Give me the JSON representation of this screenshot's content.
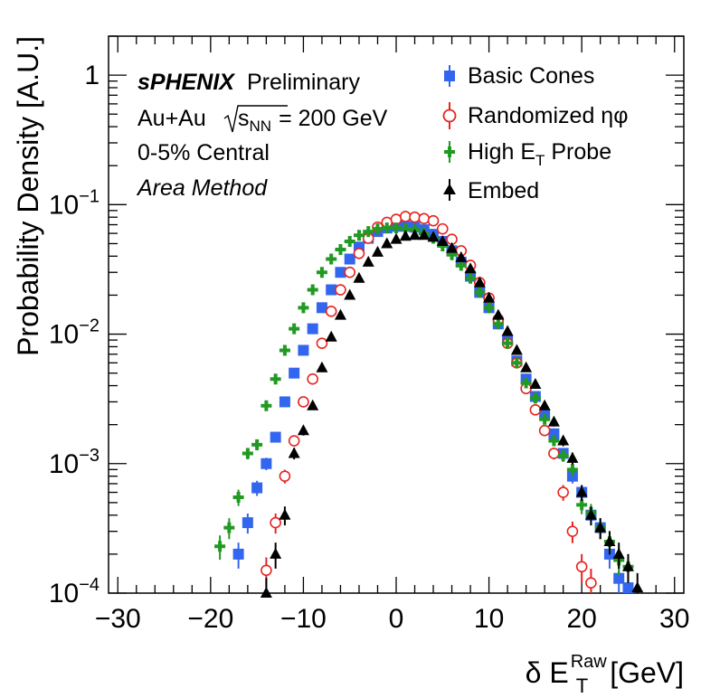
{
  "chart_data": {
    "type": "scatter",
    "x_axis": {
      "range": [
        -31,
        31
      ],
      "scale": "linear",
      "ticks": [
        -30,
        -20,
        -10,
        0,
        10,
        20,
        30
      ],
      "tick_labels": [
        "−30",
        "−20",
        "−10",
        "0",
        "10",
        "20",
        "30"
      ],
      "label_prefix": "δ E",
      "label_sub": "T",
      "label_sup": "Raw",
      "label_suffix": "[GeV]"
    },
    "y_axis": {
      "range": [
        0.0001,
        2
      ],
      "scale": "log",
      "label": "Probability Density [A.U.]",
      "tick_values": [
        0.0001,
        0.001,
        0.01,
        0.1,
        1
      ],
      "tick_labels": [
        {
          "base": "10",
          "exp": "−4"
        },
        {
          "base": "10",
          "exp": "−3"
        },
        {
          "base": "10",
          "exp": "−2"
        },
        {
          "base": "10",
          "exp": "−1"
        },
        {
          "base": "1",
          "exp": ""
        }
      ]
    },
    "annotations": {
      "experiment": "sPHENIX",
      "status": "Preliminary",
      "system": "Au+Au",
      "energy_s": "s",
      "energy_sub": "NN",
      "energy_value": "= 200 GeV",
      "centrality": "0-5% Central",
      "method": "Area Method"
    },
    "series": [
      {
        "name": "Basic Cones",
        "marker": "square",
        "color": "#3366ee",
        "x": [
          -17,
          -16,
          -15,
          -14,
          -13,
          -12,
          -11,
          -10,
          -9,
          -8,
          -7,
          -6,
          -5,
          -4,
          -3,
          -2,
          -1,
          0,
          1,
          2,
          3,
          4,
          5,
          6,
          7,
          8,
          9,
          10,
          11,
          12,
          13,
          14,
          15,
          16,
          17,
          18,
          19,
          20,
          21,
          22,
          23,
          24,
          25
        ],
        "y": [
          0.0002,
          0.00035,
          0.00065,
          0.001,
          0.0016,
          0.003,
          0.005,
          0.0075,
          0.011,
          0.016,
          0.022,
          0.03,
          0.038,
          0.047,
          0.055,
          0.062,
          0.066,
          0.068,
          0.068,
          0.067,
          0.064,
          0.059,
          0.052,
          0.044,
          0.036,
          0.028,
          0.021,
          0.016,
          0.012,
          0.009,
          0.0062,
          0.0045,
          0.0033,
          0.0024,
          0.0017,
          0.0012,
          0.0008,
          0.0006,
          0.0004,
          0.00032,
          0.0002,
          0.00013,
          0.00011
        ]
      },
      {
        "name": "Randomized ηφ",
        "marker": "open-circle",
        "color": "#e8231f",
        "x": [
          -14,
          -13,
          -12,
          -11,
          -10,
          -9,
          -8,
          -7,
          -6,
          -5,
          -4,
          -3,
          -2,
          -1,
          0,
          1,
          2,
          3,
          4,
          5,
          6,
          7,
          8,
          9,
          10,
          11,
          12,
          13,
          14,
          15,
          16,
          17,
          18,
          19,
          20,
          21
        ],
        "y": [
          0.00015,
          0.00035,
          0.0008,
          0.0015,
          0.003,
          0.0045,
          0.0085,
          0.015,
          0.022,
          0.03,
          0.042,
          0.055,
          0.067,
          0.073,
          0.077,
          0.081,
          0.08,
          0.078,
          0.075,
          0.065,
          0.054,
          0.044,
          0.034,
          0.025,
          0.019,
          0.013,
          0.0085,
          0.006,
          0.0038,
          0.0026,
          0.0018,
          0.0012,
          0.0006,
          0.0003,
          0.00016,
          0.00012
        ]
      },
      {
        "name": "High E_T Probe",
        "marker": "cross",
        "color": "#229922",
        "x": [
          -19,
          -18,
          -17,
          -16,
          -15,
          -14,
          -13,
          -12,
          -11,
          -10,
          -9,
          -8,
          -7,
          -6,
          -5,
          -4,
          -3,
          -2,
          -1,
          0,
          1,
          2,
          3,
          4,
          5,
          6,
          7,
          8,
          9,
          10,
          11,
          12,
          13,
          14,
          15,
          16,
          17,
          18,
          19,
          20,
          21,
          22,
          23,
          24,
          25
        ],
        "y": [
          0.00023,
          0.00032,
          0.00055,
          0.0012,
          0.0014,
          0.0028,
          0.0045,
          0.0075,
          0.011,
          0.016,
          0.022,
          0.03,
          0.038,
          0.045,
          0.052,
          0.058,
          0.062,
          0.065,
          0.066,
          0.066,
          0.065,
          0.064,
          0.06,
          0.055,
          0.048,
          0.041,
          0.034,
          0.027,
          0.021,
          0.016,
          0.012,
          0.0085,
          0.006,
          0.0042,
          0.0032,
          0.0022,
          0.0015,
          0.00115,
          0.0009,
          0.00048,
          0.00042,
          0.00032,
          0.00025,
          0.00018,
          0.00016
        ]
      },
      {
        "name": "Embed",
        "marker": "triangle",
        "color": "#000000",
        "x": [
          -14,
          -13,
          -12,
          -11,
          -10,
          -9,
          -8,
          -7,
          -6,
          -5,
          -4,
          -3,
          -2,
          -1,
          0,
          1,
          2,
          3,
          4,
          5,
          6,
          7,
          8,
          9,
          10,
          11,
          12,
          13,
          14,
          15,
          16,
          17,
          18,
          19,
          20,
          21,
          22,
          23,
          24,
          25,
          26
        ],
        "y": [
          0.0001,
          0.0002,
          0.0004,
          0.0012,
          0.0018,
          0.0028,
          0.0055,
          0.0095,
          0.014,
          0.02,
          0.027,
          0.036,
          0.043,
          0.05,
          0.054,
          0.057,
          0.058,
          0.058,
          0.056,
          0.052,
          0.046,
          0.039,
          0.032,
          0.025,
          0.019,
          0.014,
          0.0105,
          0.0075,
          0.0055,
          0.0041,
          0.0028,
          0.0021,
          0.0015,
          0.0011,
          0.0006,
          0.0004,
          0.00032,
          0.00025,
          0.0002,
          0.00016,
          0.00011
        ]
      }
    ]
  }
}
